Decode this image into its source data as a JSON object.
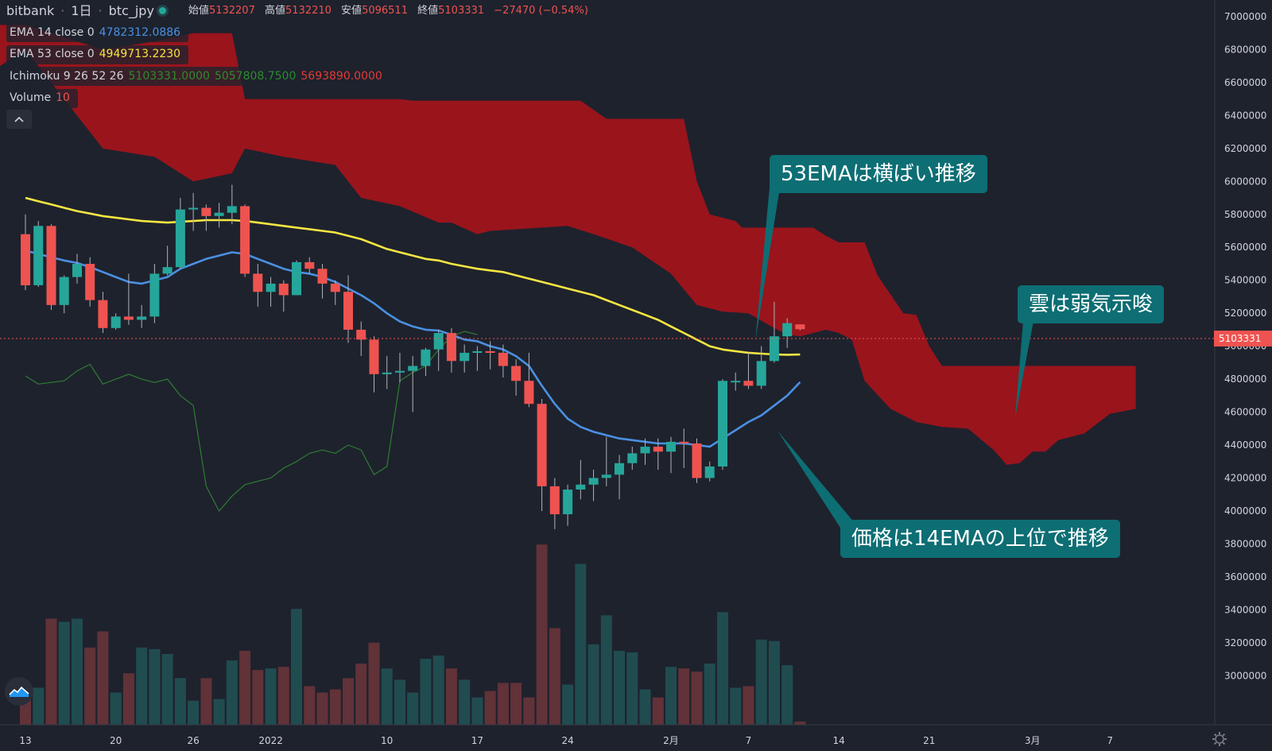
{
  "header": {
    "symbol_exchange": "bitbank",
    "interval": "1日",
    "symbol": "btc_jpy",
    "ohlc": [
      {
        "label": "始値",
        "value": "5132207"
      },
      {
        "label": "高値",
        "value": "5132210"
      },
      {
        "label": "安値",
        "value": "5096511"
      },
      {
        "label": "終値",
        "value": "5103331"
      }
    ],
    "change": "−27470 (−0.54%)"
  },
  "indicators": {
    "ema14": {
      "label": "EMA 14 close 0",
      "value": "4782312.0886",
      "color": "#4a90e2"
    },
    "ema53": {
      "label": "EMA 53 close 0",
      "value": "4949713.2230",
      "color": "#f5e642"
    },
    "ichimoku": {
      "label": "Ichimoku 9 26 52 26",
      "values": [
        "5103331.0000",
        "5057808.7500",
        "5693890.0000"
      ],
      "colors": [
        "#2e8b2e",
        "#2e8b2e",
        "#e53935"
      ]
    },
    "volume": {
      "label": "Volume",
      "value": "10"
    }
  },
  "annotations": {
    "ema53_note": "53EMAは横ばい推移",
    "cloud_note": "雲は弱気示唆",
    "ema14_note": "価格は14EMAの上位で推移"
  },
  "price_label": "5103331",
  "colors": {
    "background": "#1e222d",
    "up": "#26a69a",
    "down": "#ef5350",
    "cloud_bear": "#a5141b",
    "cloud_bull": "#1b6b12",
    "annotation": "#0d6e74"
  },
  "chart_data": {
    "type": "candlestick",
    "y_axis": {
      "min": 2900000,
      "max": 7000000,
      "ticks": [
        7000000,
        6800000,
        6600000,
        6400000,
        6200000,
        6000000,
        5800000,
        5600000,
        5400000,
        5200000,
        5000000,
        4800000,
        4600000,
        4400000,
        4200000,
        4000000,
        3800000,
        3600000,
        3400000,
        3200000,
        3000000
      ]
    },
    "x_ticks": [
      {
        "label": "13",
        "day": 0
      },
      {
        "label": "20",
        "day": 7
      },
      {
        "label": "26",
        "day": 13
      },
      {
        "label": "2022",
        "day": 19
      },
      {
        "label": "10",
        "day": 28
      },
      {
        "label": "17",
        "day": 35
      },
      {
        "label": "24",
        "day": 42
      },
      {
        "label": "2月",
        "day": 50
      },
      {
        "label": "7",
        "day": 56
      },
      {
        "label": "14",
        "day": 63
      },
      {
        "label": "21",
        "day": 70
      },
      {
        "label": "3月",
        "day": 78
      },
      {
        "label": "7",
        "day": 84
      }
    ],
    "candles": [
      [
        5680000,
        5370000,
        5800000,
        5340000,
        115
      ],
      [
        5370000,
        5730000,
        5760000,
        5360000,
        115
      ],
      [
        5730000,
        5250000,
        5740000,
        5220000,
        330
      ],
      [
        5250000,
        5420000,
        5430000,
        5200000,
        320
      ],
      [
        5420000,
        5500000,
        5560000,
        5380000,
        330
      ],
      [
        5500000,
        5280000,
        5540000,
        5240000,
        240
      ],
      [
        5280000,
        5110000,
        5330000,
        5080000,
        290
      ],
      [
        5110000,
        5180000,
        5200000,
        5100000,
        100
      ],
      [
        5180000,
        5160000,
        5440000,
        5130000,
        160
      ],
      [
        5160000,
        5180000,
        5250000,
        5110000,
        240
      ],
      [
        5180000,
        5440000,
        5500000,
        5140000,
        235
      ],
      [
        5440000,
        5480000,
        5610000,
        5430000,
        220
      ],
      [
        5480000,
        5830000,
        5900000,
        5470000,
        145
      ],
      [
        5830000,
        5840000,
        5930000,
        5700000,
        75
      ],
      [
        5840000,
        5790000,
        5860000,
        5700000,
        145
      ],
      [
        5790000,
        5810000,
        5870000,
        5720000,
        80
      ],
      [
        5810000,
        5850000,
        5980000,
        5740000,
        200
      ],
      [
        5850000,
        5440000,
        5860000,
        5420000,
        230
      ],
      [
        5440000,
        5330000,
        5500000,
        5240000,
        170
      ],
      [
        5330000,
        5380000,
        5420000,
        5240000,
        175
      ],
      [
        5380000,
        5310000,
        5400000,
        5210000,
        180
      ],
      [
        5310000,
        5510000,
        5520000,
        5310000,
        360
      ],
      [
        5510000,
        5470000,
        5540000,
        5440000,
        120
      ],
      [
        5470000,
        5380000,
        5500000,
        5290000,
        100
      ],
      [
        5380000,
        5330000,
        5400000,
        5250000,
        110
      ],
      [
        5330000,
        5100000,
        5430000,
        5020000,
        145
      ],
      [
        5100000,
        5040000,
        5150000,
        4940000,
        190
      ],
      [
        5040000,
        4830000,
        5060000,
        4720000,
        255
      ],
      [
        4830000,
        4840000,
        4940000,
        4740000,
        175
      ],
      [
        4840000,
        4850000,
        4960000,
        4780000,
        140
      ],
      [
        4850000,
        4880000,
        4940000,
        4600000,
        100
      ],
      [
        4880000,
        4980000,
        4990000,
        4820000,
        205
      ],
      [
        4980000,
        5080000,
        5100000,
        4850000,
        215
      ],
      [
        5080000,
        4910000,
        5110000,
        4840000,
        175
      ],
      [
        4910000,
        4960000,
        5010000,
        4840000,
        140
      ],
      [
        4960000,
        4970000,
        5000000,
        4850000,
        85
      ],
      [
        4970000,
        4960000,
        5030000,
        4860000,
        105
      ],
      [
        4960000,
        4880000,
        5010000,
        4810000,
        130
      ],
      [
        4880000,
        4790000,
        4920000,
        4700000,
        130
      ],
      [
        4790000,
        4650000,
        4960000,
        4630000,
        85
      ],
      [
        4650000,
        4150000,
        4680000,
        4000000,
        560
      ],
      [
        4150000,
        3980000,
        4200000,
        3890000,
        300
      ],
      [
        3980000,
        4130000,
        4160000,
        3910000,
        125
      ],
      [
        4130000,
        4160000,
        4310000,
        4070000,
        500
      ],
      [
        4160000,
        4200000,
        4250000,
        4060000,
        250
      ],
      [
        4200000,
        4220000,
        4450000,
        4150000,
        340
      ],
      [
        4220000,
        4290000,
        4340000,
        4070000,
        230
      ],
      [
        4290000,
        4350000,
        4390000,
        4250000,
        225
      ],
      [
        4350000,
        4390000,
        4440000,
        4280000,
        110
      ],
      [
        4390000,
        4360000,
        4440000,
        4250000,
        85
      ],
      [
        4360000,
        4420000,
        4450000,
        4230000,
        180
      ],
      [
        4420000,
        4410000,
        4500000,
        4260000,
        175
      ],
      [
        4410000,
        4200000,
        4440000,
        4170000,
        165
      ],
      [
        4200000,
        4270000,
        4300000,
        4180000,
        190
      ],
      [
        4270000,
        4790000,
        4800000,
        4250000,
        350
      ],
      [
        4790000,
        4790000,
        4840000,
        4730000,
        115
      ],
      [
        4790000,
        4760000,
        4960000,
        4740000,
        120
      ],
      [
        4760000,
        4910000,
        5000000,
        4740000,
        265
      ],
      [
        4910000,
        5060000,
        5270000,
        4900000,
        260
      ],
      [
        5060000,
        5140000,
        5170000,
        4990000,
        185
      ],
      [
        5132207,
        5103331,
        5132210,
        5096511,
        10
      ]
    ],
    "ema14": [
      5580000,
      5560000,
      5540000,
      5520000,
      5505000,
      5480000,
      5450000,
      5420000,
      5390000,
      5380000,
      5400000,
      5420000,
      5470000,
      5500000,
      5530000,
      5550000,
      5570000,
      5560000,
      5530000,
      5500000,
      5470000,
      5450000,
      5440000,
      5420000,
      5390000,
      5350000,
      5310000,
      5260000,
      5200000,
      5150000,
      5120000,
      5100000,
      5095000,
      5070000,
      5040000,
      5030000,
      5000000,
      4980000,
      4940000,
      4880000,
      4760000,
      4650000,
      4560000,
      4510000,
      4480000,
      4460000,
      4440000,
      4430000,
      4420000,
      4410000,
      4410000,
      4410000,
      4400000,
      4390000,
      4440000,
      4490000,
      4540000,
      4580000,
      4640000,
      4700000,
      4782312
    ],
    "ema53": [
      5900000,
      5880000,
      5860000,
      5840000,
      5820000,
      5805000,
      5790000,
      5780000,
      5770000,
      5760000,
      5755000,
      5750000,
      5755000,
      5760000,
      5765000,
      5765000,
      5765000,
      5760000,
      5750000,
      5740000,
      5730000,
      5720000,
      5710000,
      5700000,
      5690000,
      5670000,
      5650000,
      5620000,
      5590000,
      5570000,
      5550000,
      5530000,
      5520000,
      5500000,
      5485000,
      5470000,
      5460000,
      5450000,
      5430000,
      5410000,
      5390000,
      5370000,
      5350000,
      5330000,
      5310000,
      5280000,
      5250000,
      5220000,
      5190000,
      5160000,
      5120000,
      5080000,
      5040000,
      5000000,
      4980000,
      4970000,
      4960000,
      4955000,
      4950000,
      4948000,
      4949713
    ],
    "cloud_upper": [
      [
        -19,
        6200000
      ],
      [
        -17,
        6200000
      ],
      [
        -14,
        6300000
      ],
      [
        -11,
        6400000
      ],
      [
        -8,
        6700000
      ],
      [
        -6,
        6900000
      ],
      [
        -2,
        6950000
      ],
      [
        0,
        6950000
      ],
      [
        6,
        6800000
      ],
      [
        10,
        6850000
      ],
      [
        13,
        6900000
      ],
      [
        16,
        6900000
      ],
      [
        17,
        6500000
      ],
      [
        25,
        6500000
      ],
      [
        29,
        6500000
      ],
      [
        30,
        6490000
      ],
      [
        37,
        6490000
      ],
      [
        43,
        6490000
      ],
      [
        45,
        6380000
      ],
      [
        51,
        6380000
      ],
      [
        52,
        6000000
      ],
      [
        53,
        5800000
      ],
      [
        55,
        5760000
      ],
      [
        55.5,
        5720000
      ],
      [
        61,
        5720000
      ],
      [
        62,
        5670000
      ],
      [
        63,
        5630000
      ],
      [
        65,
        5630000
      ],
      [
        66,
        5430000
      ],
      [
        68,
        5200000
      ],
      [
        69,
        5190000
      ],
      [
        70,
        5000000
      ],
      [
        71,
        4880000
      ],
      [
        86,
        4880000
      ]
    ],
    "cloud_lower": [
      [
        -19,
        6100000
      ],
      [
        -17,
        6050000
      ],
      [
        -14,
        6100000
      ],
      [
        -11,
        6200000
      ],
      [
        -8,
        6300000
      ],
      [
        -6,
        6400000
      ],
      [
        -2,
        6700000
      ],
      [
        0,
        6800000
      ],
      [
        6,
        6200000
      ],
      [
        10,
        6150000
      ],
      [
        13,
        6000000
      ],
      [
        16,
        6050000
      ],
      [
        17,
        6200000
      ],
      [
        20,
        6150000
      ],
      [
        24,
        6100000
      ],
      [
        26,
        5900000
      ],
      [
        29,
        5850000
      ],
      [
        32,
        5750000
      ],
      [
        33,
        5750000
      ],
      [
        35,
        5680000
      ],
      [
        36,
        5700000
      ],
      [
        42,
        5730000
      ],
      [
        44,
        5680000
      ],
      [
        47,
        5600000
      ],
      [
        50,
        5440000
      ],
      [
        52,
        5250000
      ],
      [
        54,
        5210000
      ],
      [
        56,
        5200000
      ],
      [
        58,
        5110000
      ],
      [
        59,
        5070000
      ],
      [
        60,
        5060000
      ],
      [
        62,
        5100000
      ],
      [
        63,
        5080000
      ],
      [
        64,
        5040000
      ],
      [
        65,
        4790000
      ],
      [
        67,
        4620000
      ],
      [
        69,
        4540000
      ],
      [
        71,
        4510000
      ],
      [
        73,
        4500000
      ],
      [
        75,
        4370000
      ],
      [
        76,
        4280000
      ],
      [
        77,
        4290000
      ],
      [
        78,
        4360000
      ],
      [
        79,
        4360000
      ],
      [
        80,
        4430000
      ],
      [
        82,
        4470000
      ],
      [
        84,
        4590000
      ],
      [
        86,
        4620000
      ]
    ],
    "chikou": [
      [
        0,
        4820000
      ],
      [
        1,
        4770000
      ],
      [
        2,
        4780000
      ],
      [
        3,
        4790000
      ],
      [
        4,
        4850000
      ],
      [
        5,
        4890000
      ],
      [
        6,
        4770000
      ],
      [
        7,
        4800000
      ],
      [
        8,
        4830000
      ],
      [
        9,
        4800000
      ],
      [
        10,
        4780000
      ],
      [
        11,
        4800000
      ],
      [
        12,
        4700000
      ],
      [
        13,
        4640000
      ],
      [
        14,
        4150000
      ],
      [
        15,
        4000000
      ],
      [
        16,
        4090000
      ],
      [
        17,
        4160000
      ],
      [
        18,
        4180000
      ],
      [
        19,
        4200000
      ],
      [
        20,
        4260000
      ],
      [
        21,
        4300000
      ],
      [
        22,
        4350000
      ],
      [
        23,
        4370000
      ],
      [
        24,
        4350000
      ],
      [
        25,
        4400000
      ],
      [
        26,
        4370000
      ],
      [
        27,
        4220000
      ],
      [
        28,
        4270000
      ],
      [
        29,
        4790000
      ],
      [
        30,
        4840000
      ],
      [
        31,
        4880000
      ],
      [
        32,
        4980000
      ],
      [
        33,
        5060000
      ],
      [
        34,
        5090000
      ],
      [
        35,
        5070000
      ]
    ]
  }
}
